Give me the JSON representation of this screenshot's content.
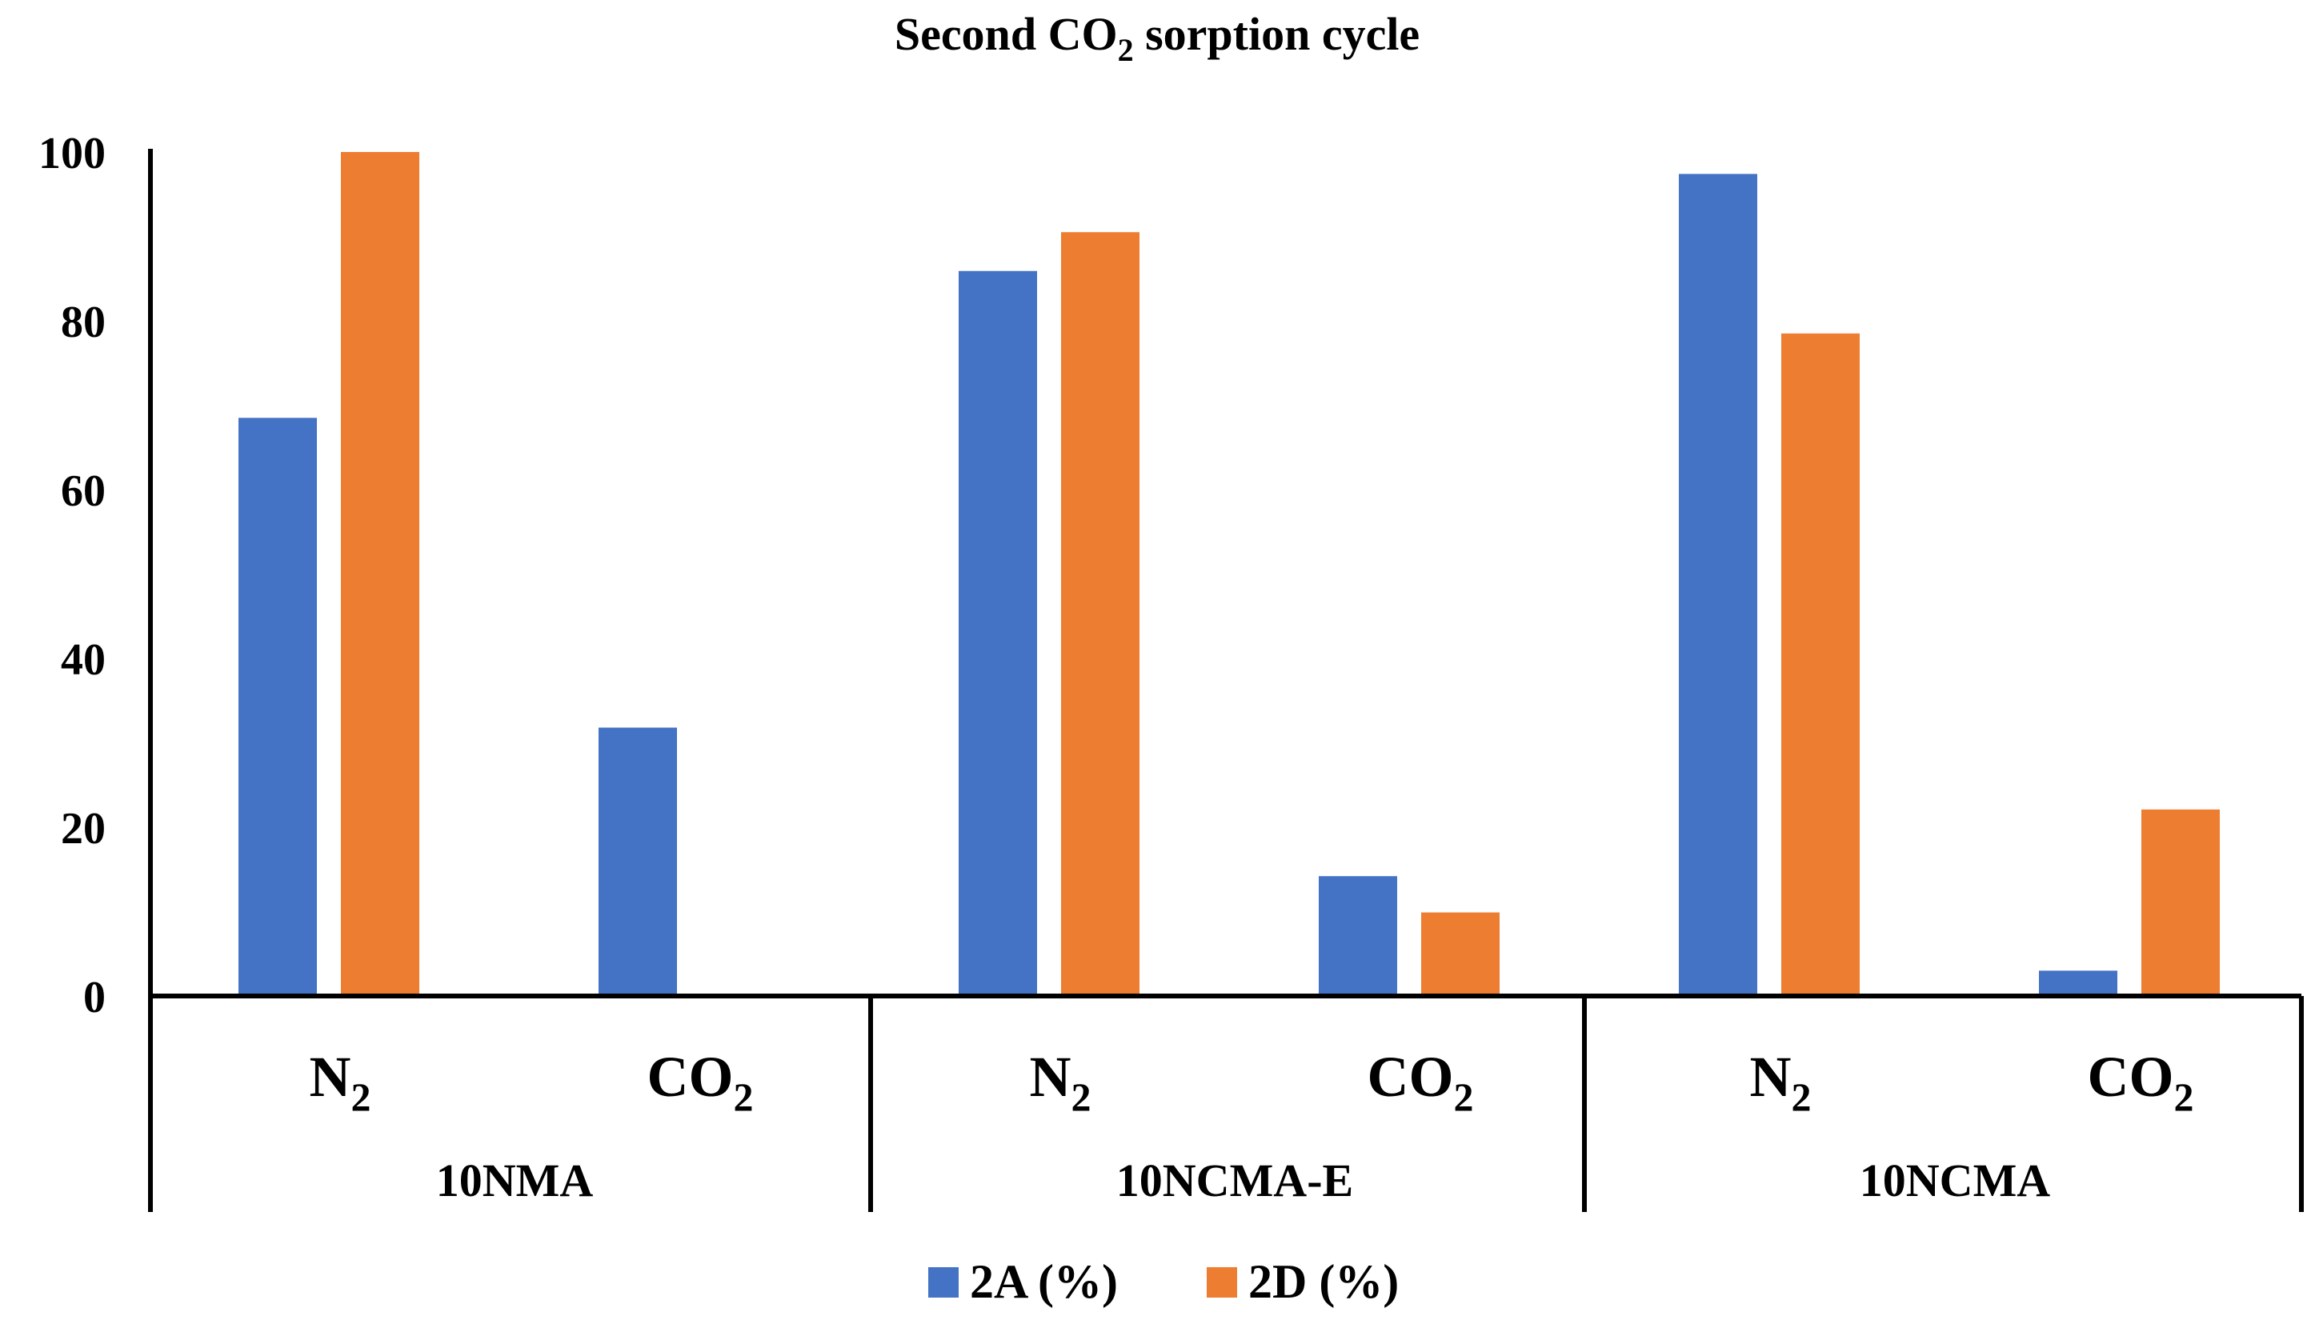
{
  "chart_data": {
    "type": "bar",
    "title": {
      "pre": "Second CO",
      "sub": "2",
      "post": " sorption cycle"
    },
    "xlabel": "",
    "ylabel": "",
    "ylim": [
      0,
      100
    ],
    "yticks": [
      "0",
      "20",
      "40",
      "60",
      "80",
      "100"
    ],
    "categories": [
      {
        "base": "N",
        "sub": "2"
      },
      {
        "base": "CO",
        "sub": "2"
      },
      {
        "base": "N",
        "sub": "2"
      },
      {
        "base": "CO",
        "sub": "2"
      },
      {
        "base": "N",
        "sub": "2"
      },
      {
        "base": "CO",
        "sub": "2"
      }
    ],
    "groups": [
      "10NMA",
      "10NCMA-E",
      "10NCMA"
    ],
    "series": [
      {
        "name": "2A (%)",
        "color": "#4472C4",
        "values": [
          68.5,
          31.8,
          85.9,
          14.2,
          97.4,
          3.0
        ]
      },
      {
        "name": "2D (%)",
        "color": "#ED7D31",
        "values": [
          100,
          0,
          90.5,
          9.9,
          78.5,
          22.1
        ]
      }
    ],
    "legend_position": "bottom",
    "grid": false
  }
}
